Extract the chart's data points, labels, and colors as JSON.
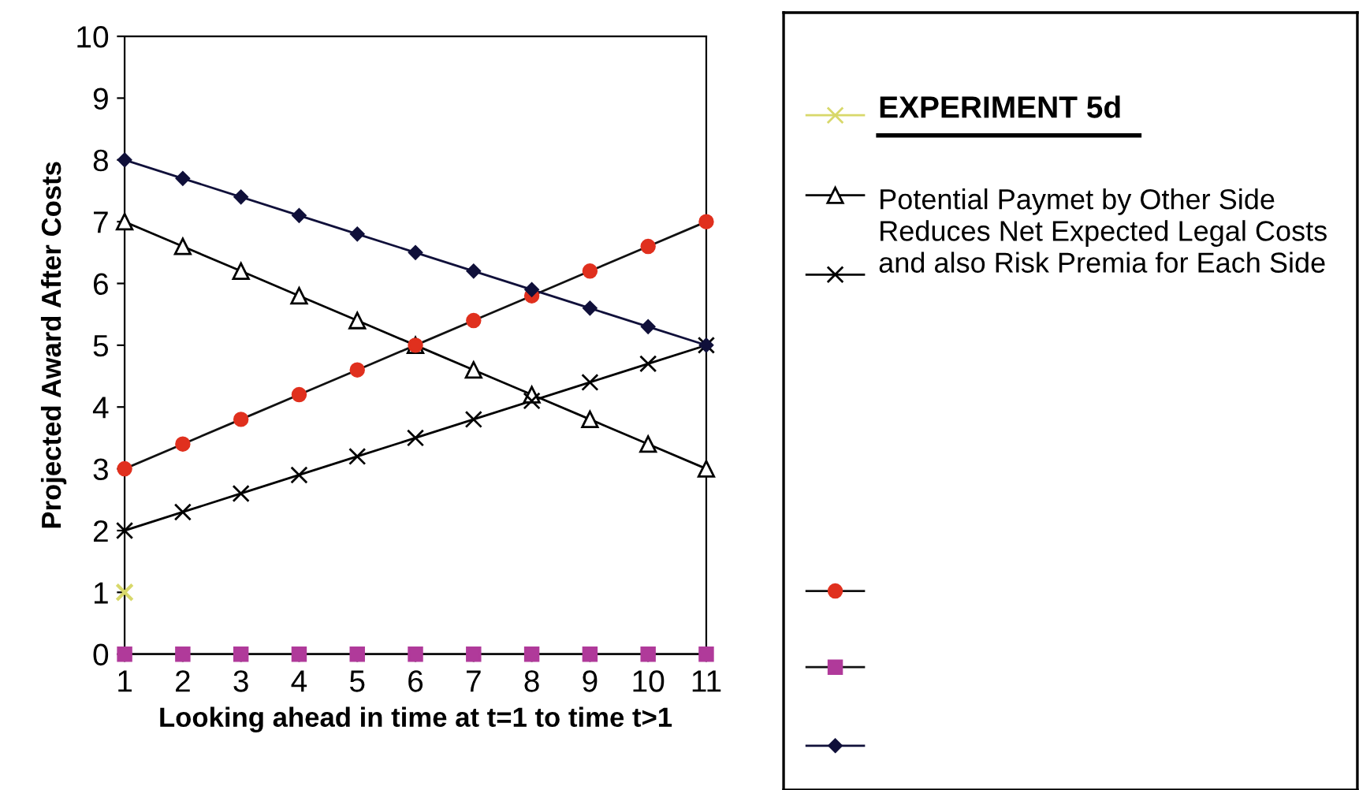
{
  "chart_data": {
    "type": "line",
    "xlabel": "Looking ahead in time at t=1 to time t>1",
    "ylabel": "Projected Award After Costs",
    "x": [
      1,
      2,
      3,
      4,
      5,
      6,
      7,
      8,
      9,
      10,
      11
    ],
    "xlim": [
      1,
      11
    ],
    "xticks": [
      1,
      2,
      3,
      4,
      5,
      6,
      7,
      8,
      9,
      10,
      11
    ],
    "ylim": [
      0,
      10
    ],
    "yticks": [
      0,
      1,
      2,
      3,
      4,
      5,
      6,
      7,
      8,
      9,
      10
    ],
    "grid": false,
    "line_style": "solid",
    "annotations": [
      "EXPERIMENT 5d",
      "Potential Paymet by Other Side\nReduces Net Expected Legal Costs\nand also Risk Premia for Each Side"
    ],
    "series": [
      {
        "type": "scatter",
        "marker": "cross",
        "color": "#d8d86a",
        "values": [
          1,
          null,
          null,
          null,
          null,
          null,
          null,
          null,
          null,
          null,
          null
        ]
      },
      {
        "marker": "triangle",
        "color": "#000000",
        "values": [
          7,
          6.6,
          6.2,
          5.8,
          5.4,
          5.0,
          4.6,
          4.2,
          3.8,
          3.4,
          3.0
        ]
      },
      {
        "marker": "cross",
        "color": "#000000",
        "values": [
          2,
          2.3,
          2.6,
          2.9,
          3.2,
          3.5,
          3.8,
          4.1,
          4.4,
          4.7,
          5.0
        ]
      },
      {
        "marker": "circle",
        "color": "#111111",
        "colors": [
          "#e0301e",
          "#e0301e",
          "#e0301e",
          "#e0301e",
          "#e0301e",
          "#e0301e",
          "#e0301e",
          "#e0301e",
          "#e0301e",
          "#e0301e",
          "#e0301e"
        ],
        "values": [
          3,
          3.4,
          3.8,
          4.2,
          4.6,
          5.0,
          5.4,
          5.8,
          6.2,
          6.6,
          7.0
        ]
      },
      {
        "marker": "square",
        "color": "#111111",
        "colors": [
          "#b03a9a",
          "#b03a9a",
          "#b03a9a",
          "#b03a9a",
          "#b03a9a",
          "#b03a9a",
          "#b03a9a",
          "#b03a9a",
          "#b03a9a",
          "#b03a9a",
          "#b03a9a"
        ],
        "values": [
          0,
          0,
          0,
          0,
          0,
          0,
          0,
          0,
          0,
          0,
          0
        ]
      },
      {
        "marker": "diamond",
        "color": "#10103a",
        "values": [
          8,
          7.7,
          7.4,
          7.1,
          6.8,
          6.5,
          6.2,
          5.9,
          5.6,
          5.3,
          5.0
        ]
      }
    ]
  }
}
